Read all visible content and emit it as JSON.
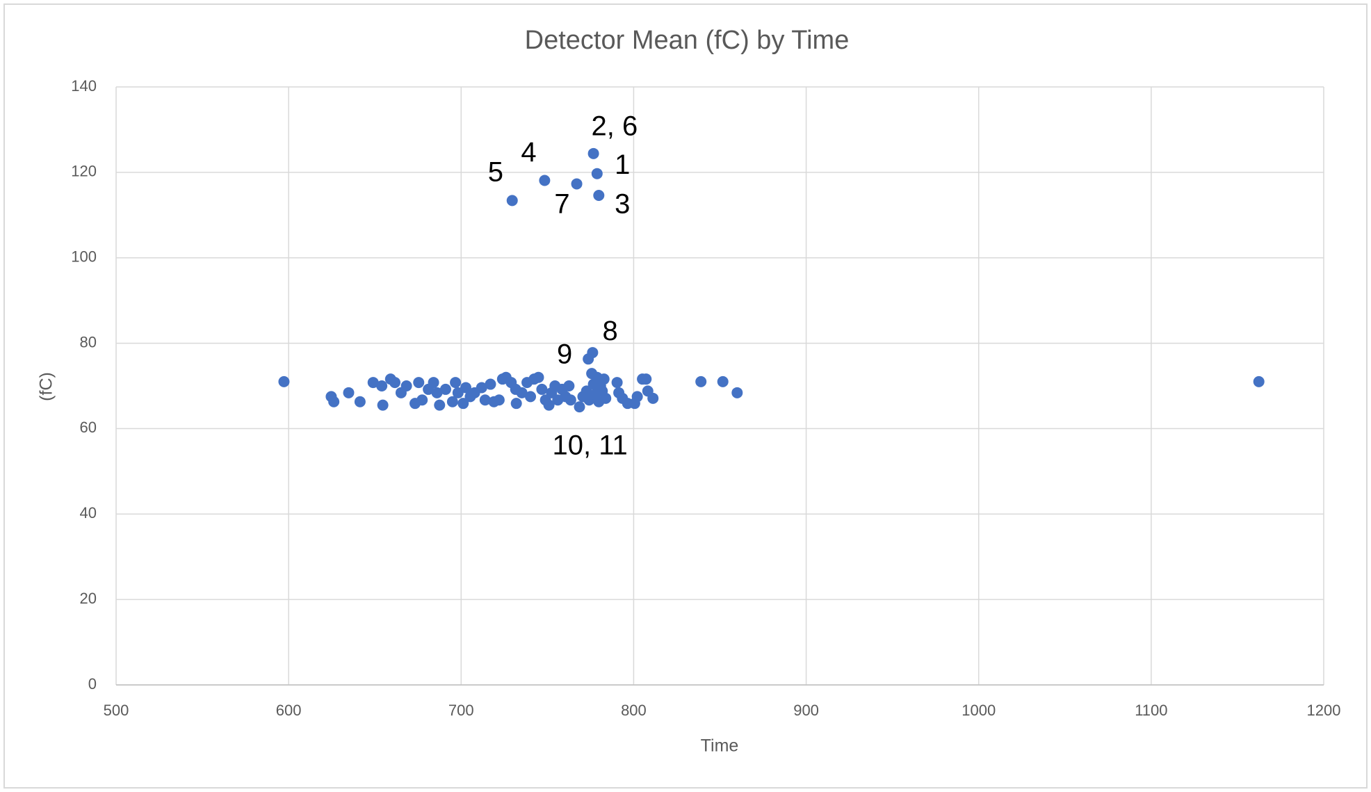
{
  "chart_data": {
    "type": "scatter",
    "title": "Detector Mean (fC) by Time",
    "x_label": "Time",
    "y_label": "(fC)",
    "color": "#4472c4",
    "grid": true,
    "xlim": [
      500,
      1200
    ],
    "xticks": [
      500,
      600,
      700,
      800,
      900,
      1000,
      1100,
      1200
    ],
    "ylim": [
      0,
      140
    ],
    "yticks": [
      0,
      20,
      40,
      60,
      80,
      100,
      120,
      140
    ],
    "x": [
      776.7,
      778.8,
      779.8,
      767,
      748.4,
      729.6,
      776.2,
      773.7,
      597.3,
      1162.4,
      839,
      851.7,
      860,
      624.7,
      626.2,
      634.8,
      641.4,
      649,
      654,
      654.6,
      659.1,
      661.6,
      665.2,
      668.3,
      673.3,
      675.4,
      677.4,
      681,
      684,
      686,
      687.5,
      691,
      695,
      696.7,
      698.2,
      701.2,
      702.7,
      705.3,
      707.8,
      711.9,
      713.9,
      717,
      719,
      722,
      724,
      726,
      729,
      731.6,
      732,
      735.2,
      738.2,
      740.2,
      742.3,
      744.8,
      746.8,
      748.9,
      750.9,
      752.4,
      754.4,
      756,
      758.5,
      760.5,
      762.5,
      763.5,
      768.6,
      770.6,
      772.7,
      774.2,
      775.7,
      776.7,
      777.8,
      778.8,
      779.8,
      780.8,
      781.8,
      782.8,
      783.8,
      790.4,
      791.4,
      793.5,
      796.5,
      800.6,
      802.1,
      805.1,
      807.2,
      808.2,
      811.2
    ],
    "values": [
      124.4,
      119.7,
      114.6,
      117.3,
      118.1,
      113.4,
      77.8,
      76.3,
      71,
      71,
      71,
      71,
      68.4,
      67.5,
      66.3,
      68.4,
      66.3,
      70.8,
      70,
      65.5,
      71.6,
      70.8,
      68.4,
      70,
      65.9,
      70.8,
      66.7,
      69.2,
      70.8,
      68.4,
      65.5,
      69.2,
      66.3,
      70.8,
      68.4,
      65.9,
      69.6,
      67.5,
      68.4,
      69.6,
      66.7,
      70.4,
      66.3,
      66.7,
      71.6,
      72,
      70.8,
      69.2,
      65.9,
      68.4,
      70.8,
      67.5,
      71.6,
      72,
      69.2,
      66.7,
      65.5,
      68.4,
      70,
      66.7,
      69.2,
      67.5,
      70,
      66.7,
      65.1,
      67.5,
      68.8,
      66.7,
      72.9,
      70.4,
      68,
      72,
      66.3,
      70,
      68.8,
      71.6,
      67.1,
      70.8,
      68.4,
      67.1,
      65.9,
      65.9,
      67.5,
      71.6,
      71.6,
      68.8,
      67.1
    ],
    "annotations": [
      {
        "text": "2, 6",
        "x": 788.9,
        "y": 130.4
      },
      {
        "text": "4",
        "x": 739.2,
        "y": 124.3
      },
      {
        "text": "1",
        "x": 793.5,
        "y": 121.4
      },
      {
        "text": "5",
        "x": 720,
        "y": 119.7
      },
      {
        "text": "7",
        "x": 758.5,
        "y": 112.2
      },
      {
        "text": "3",
        "x": 793.5,
        "y": 112.2
      },
      {
        "text": "8",
        "x": 786.4,
        "y": 82.5
      },
      {
        "text": "9",
        "x": 760,
        "y": 77
      },
      {
        "text": "10, 11",
        "x": 774.7,
        "y": 55.7
      }
    ]
  }
}
